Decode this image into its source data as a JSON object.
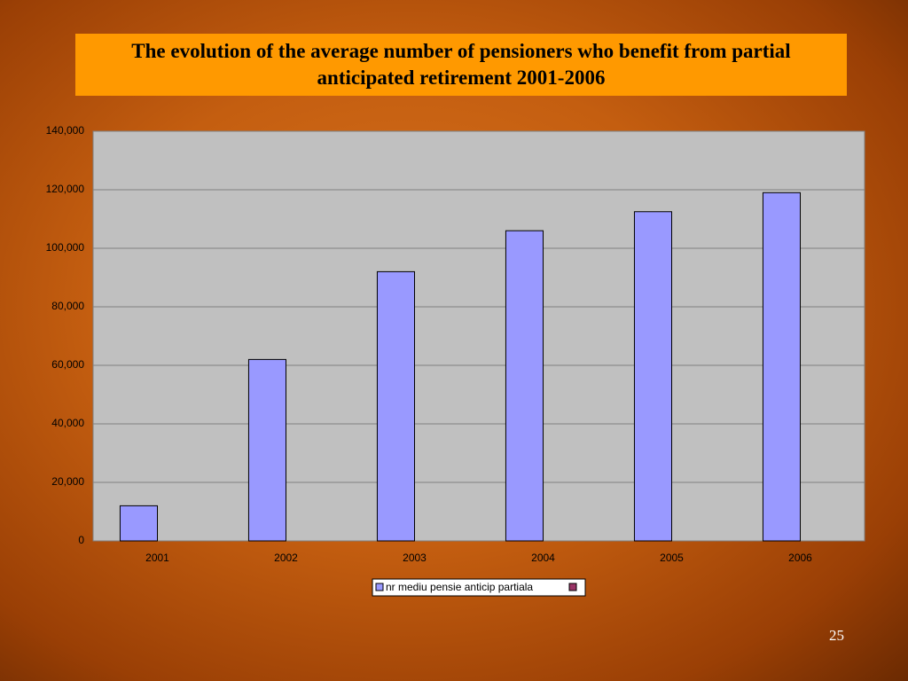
{
  "chart_data": {
    "type": "bar",
    "title": "The evolution of the average number of pensioners who benefit from partial anticipated retirement 2001-2006",
    "categories": [
      "2001",
      "2002",
      "2003",
      "2004",
      "2005",
      "2006"
    ],
    "series": [
      {
        "name": "nr mediu pensie anticip partiala",
        "color": "#9999ff",
        "values": [
          12000,
          62000,
          92000,
          106000,
          112500,
          119000
        ]
      }
    ],
    "ylim": [
      0,
      140000
    ],
    "yticks": [
      0,
      {
        "value": 20000,
        "label": "20,000"
      },
      {
        "value": 40000,
        "label": "40,000"
      },
      {
        "value": 60000,
        "label": "60,000"
      },
      {
        "value": 80000,
        "label": "80,000"
      },
      {
        "value": 100000,
        "label": "100,000"
      },
      {
        "value": 120000,
        "label": "120,000"
      },
      {
        "value": 140000,
        "label": "140,000"
      }
    ],
    "grid": true
  },
  "page_number": "25"
}
